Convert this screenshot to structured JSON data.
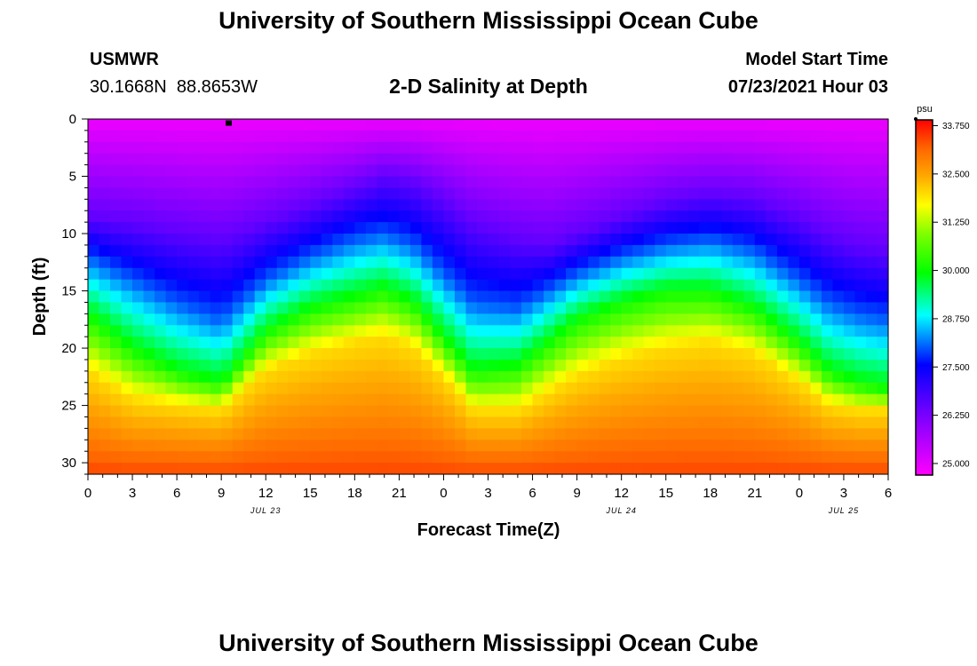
{
  "page": {
    "title_top": "University of Southern Mississippi Ocean Cube",
    "title_bottom": "University of Southern Mississippi Ocean Cube",
    "station_id": "USMWR",
    "station_lat": "30.1668N",
    "station_lon": "88.8653W",
    "model_start_label": "Model Start Time",
    "model_start_value": "07/23/2021 Hour 03"
  },
  "chart_data": {
    "type": "heatmap",
    "title": "2-D Salinity at Depth",
    "xlabel": "Forecast Time(Z)",
    "ylabel": "Depth (ft)",
    "x_ticks": [
      "0",
      "3",
      "6",
      "9",
      "12",
      "15",
      "18",
      "21",
      "0",
      "3",
      "6",
      "9",
      "12",
      "15",
      "18",
      "21",
      "0",
      "3",
      "6"
    ],
    "x_range_hours": [
      0,
      54
    ],
    "day_labels": [
      {
        "hour": 12,
        "text": "JUL 23"
      },
      {
        "hour": 36,
        "text": "JUL 24"
      },
      {
        "hour": 51,
        "text": "JUL 25"
      }
    ],
    "y_ticks": [
      0,
      5,
      10,
      15,
      20,
      25,
      30
    ],
    "ylim": [
      0,
      31
    ],
    "y_inverted": true,
    "colorbar": {
      "unit": "psu",
      "vmin": 24.7,
      "vmax": 33.9,
      "tick_values": [
        33.75,
        32.5,
        31.25,
        30.0,
        28.75,
        27.5,
        26.25,
        25.0
      ],
      "tick_labels": [
        "33.750",
        "32.500",
        "31.250",
        "30.000",
        "28.750",
        "27.500",
        "26.250",
        "25.000"
      ]
    },
    "isohaline_depths_ft": {
      "hours": [
        0,
        3,
        6,
        9,
        12,
        15,
        18,
        20,
        22,
        24,
        26,
        29,
        31,
        33,
        36,
        39,
        42,
        45,
        48,
        50,
        52,
        54
      ],
      "s_26p5": [
        8.5,
        9.0,
        9.8,
        10.5,
        9.0,
        7.5,
        6.0,
        5.0,
        5.5,
        7.0,
        9.0,
        10.5,
        11.0,
        10.0,
        8.5,
        7.2,
        6.5,
        7.0,
        8.5,
        10.0,
        11.0,
        11.5
      ],
      "s_28p0": [
        12.0,
        14.0,
        16.0,
        17.5,
        14.0,
        12.0,
        10.5,
        10.0,
        11.0,
        13.5,
        16.0,
        16.5,
        15.0,
        13.5,
        12.0,
        11.0,
        10.5,
        11.5,
        14.0,
        16.0,
        17.0,
        17.5
      ],
      "s_30p0": [
        17.0,
        20.0,
        22.0,
        23.0,
        18.5,
        16.5,
        15.5,
        14.8,
        16.0,
        19.0,
        22.0,
        21.5,
        19.5,
        17.5,
        16.0,
        15.0,
        15.0,
        16.5,
        19.5,
        22.0,
        23.0,
        23.5
      ],
      "s_32p0": [
        22.0,
        24.5,
        25.0,
        25.5,
        22.0,
        20.5,
        19.5,
        19.0,
        20.0,
        22.5,
        25.5,
        25.5,
        24.0,
        22.5,
        21.0,
        20.0,
        19.5,
        20.5,
        23.0,
        25.0,
        25.5,
        25.5
      ]
    },
    "surface_salinity_psu": 24.9,
    "bottom_salinity_psu": 33.4,
    "marker": {
      "hour": 9.5,
      "depth_ft": 0.2,
      "label": "station marker"
    }
  }
}
